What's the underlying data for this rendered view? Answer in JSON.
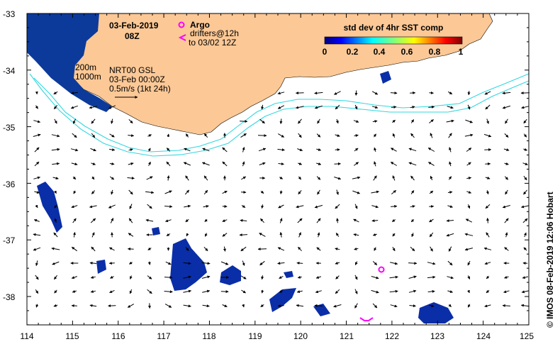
{
  "map": {
    "date": "03-Feb-2019",
    "time": "08Z",
    "legend_argo": "Argo",
    "legend_drifters_1": "drifters@12h",
    "legend_drifters_2": "to 03/02 12Z",
    "contour_200": "200m",
    "contour_1000": "1000m",
    "current_1": "NRT00 GSL",
    "current_2": "03-Feb 00:00Z",
    "current_3": "0.5m/s (1kt 24h)",
    "colorbar_title": "std dev of 4hr SST comp",
    "colorbar_ticks": [
      "0",
      "0.2",
      "0.4",
      "0.6",
      "0.8",
      "1"
    ],
    "credit": "© IMOS 08-Feb-2019 12:06 Hobart",
    "lon_ticks": [
      "114",
      "115",
      "116",
      "117",
      "118",
      "119",
      "120",
      "121",
      "122",
      "123",
      "124",
      "125"
    ],
    "lat_ticks": [
      "-33",
      "-34",
      "-35",
      "-36",
      "-37",
      "-38"
    ],
    "extent": {
      "lon": [
        114,
        125
      ],
      "lat": [
        -38.5,
        -33
      ]
    },
    "colors": {
      "land": "#fbc896",
      "contour": "#30d8e0",
      "argo": "#ff00ff",
      "patch": "#0a2ea8"
    }
  }
}
